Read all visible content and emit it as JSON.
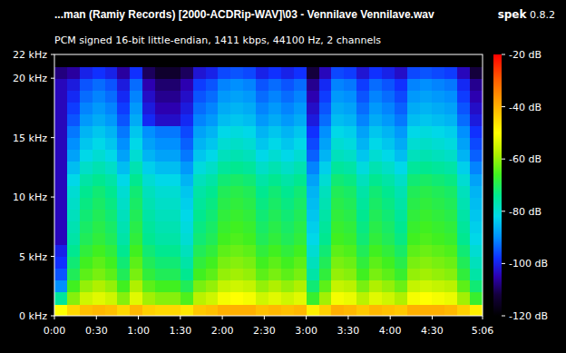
{
  "chart_data": {
    "type": "heatmap",
    "title": "...man (Ramiy Records) [2000-ACDRip-WAV]\\03 - Vennilave Vennilave.wav",
    "subtitle": "PCM signed 16-bit little-endian, 1411 kbps, 44100 Hz, 2 channels",
    "program": "spek",
    "version": "0.8.2",
    "xlim": [
      0,
      306
    ],
    "xticks": [
      {
        "value": 0,
        "label": "0:00"
      },
      {
        "value": 30,
        "label": "0:30"
      },
      {
        "value": 60,
        "label": "1:00"
      },
      {
        "value": 90,
        "label": "1:30"
      },
      {
        "value": 120,
        "label": "2:00"
      },
      {
        "value": 150,
        "label": "2:30"
      },
      {
        "value": 180,
        "label": "3:00"
      },
      {
        "value": 210,
        "label": "3:30"
      },
      {
        "value": 240,
        "label": "4:00"
      },
      {
        "value": 270,
        "label": "4:30"
      },
      {
        "value": 306,
        "label": "5:06"
      }
    ],
    "ylim": [
      0,
      22
    ],
    "yticks": [
      {
        "value": 0,
        "label": "0 kHz"
      },
      {
        "value": 5,
        "label": "5 kHz"
      },
      {
        "value": 10,
        "label": "10 kHz"
      },
      {
        "value": 15,
        "label": "15 kHz"
      },
      {
        "value": 20,
        "label": "20 kHz"
      },
      {
        "value": 22,
        "label": "22 kHz"
      }
    ],
    "x_bins": [
      0,
      9,
      18,
      27,
      36,
      45,
      54,
      63,
      72,
      81,
      90,
      99,
      108,
      117,
      126,
      135,
      144,
      153,
      162,
      171,
      180,
      189,
      198,
      207,
      216,
      225,
      234,
      243,
      252,
      261,
      270,
      279,
      288,
      297,
      306
    ],
    "y_bins": [
      0,
      1,
      2,
      3,
      4,
      5,
      6,
      7,
      8,
      9,
      10,
      11,
      12,
      13,
      14,
      15,
      16,
      17,
      18,
      19,
      20,
      21,
      22
    ],
    "cells": [
      [
        -50,
        -45,
        -42,
        -41,
        -42,
        -45,
        -41,
        -44,
        -45,
        -45,
        -47,
        -43,
        -42,
        -40,
        -40,
        -40,
        -42,
        -41,
        -42,
        -41,
        -48,
        -44,
        -40,
        -41,
        -43,
        -41,
        -42,
        -43,
        -40,
        -40,
        -40,
        -41,
        -44,
        -48
      ],
      [
        -75,
        -61,
        -55,
        -53,
        -55,
        -61,
        -53,
        -59,
        -61,
        -61,
        -65,
        -57,
        -55,
        -51,
        -50,
        -51,
        -55,
        -53,
        -55,
        -53,
        -67,
        -59,
        -51,
        -52,
        -57,
        -53,
        -55,
        -58,
        -51,
        -50,
        -51,
        -52,
        -59,
        -67
      ],
      [
        -90,
        -66,
        -60,
        -58,
        -60,
        -66,
        -58,
        -64,
        -66,
        -66,
        -70,
        -62,
        -60,
        -56,
        -55,
        -56,
        -60,
        -58,
        -60,
        -58,
        -72,
        -64,
        -56,
        -57,
        -62,
        -58,
        -60,
        -63,
        -56,
        -55,
        -56,
        -57,
        -64,
        -72
      ],
      [
        -95,
        -70,
        -64,
        -62,
        -64,
        -70,
        -62,
        -68,
        -70,
        -70,
        -74,
        -66,
        -64,
        -60,
        -59,
        -60,
        -64,
        -62,
        -64,
        -62,
        -76,
        -68,
        -60,
        -61,
        -66,
        -62,
        -64,
        -67,
        -60,
        -59,
        -60,
        -61,
        -68,
        -76
      ],
      [
        -98,
        -72,
        -66,
        -64,
        -66,
        -72,
        -64,
        -70,
        -72,
        -72,
        -76,
        -68,
        -66,
        -62,
        -61,
        -62,
        -66,
        -64,
        -66,
        -64,
        -78,
        -70,
        -62,
        -63,
        -68,
        -64,
        -66,
        -69,
        -62,
        -61,
        -62,
        -63,
        -70,
        -78
      ],
      [
        -100,
        -74,
        -68,
        -66,
        -68,
        -74,
        -66,
        -72,
        -74,
        -74,
        -78,
        -70,
        -68,
        -64,
        -63,
        -64,
        -68,
        -66,
        -68,
        -66,
        -80,
        -72,
        -64,
        -65,
        -70,
        -66,
        -68,
        -71,
        -64,
        -63,
        -64,
        -65,
        -72,
        -80
      ],
      [
        -104,
        -76,
        -70,
        -68,
        -70,
        -76,
        -68,
        -74,
        -76,
        -76,
        -80,
        -72,
        -70,
        -66,
        -65,
        -66,
        -70,
        -68,
        -70,
        -68,
        -82,
        -74,
        -66,
        -67,
        -72,
        -68,
        -70,
        -73,
        -66,
        -65,
        -66,
        -67,
        -74,
        -82
      ],
      [
        -104,
        -77,
        -71,
        -69,
        -71,
        -77,
        -69,
        -75,
        -77,
        -77,
        -81,
        -73,
        -71,
        -67,
        -66,
        -67,
        -71,
        -69,
        -71,
        -69,
        -83,
        -75,
        -67,
        -68,
        -73,
        -69,
        -71,
        -74,
        -67,
        -66,
        -67,
        -68,
        -75,
        -83
      ],
      [
        -104,
        -78,
        -72,
        -70,
        -72,
        -78,
        -70,
        -76,
        -78,
        -78,
        -82,
        -74,
        -72,
        -68,
        -67,
        -68,
        -72,
        -70,
        -72,
        -70,
        -84,
        -76,
        -68,
        -69,
        -74,
        -70,
        -72,
        -75,
        -68,
        -67,
        -68,
        -69,
        -76,
        -84
      ],
      [
        -104,
        -79,
        -73,
        -71,
        -73,
        -79,
        -71,
        -77,
        -79,
        -79,
        -83,
        -75,
        -73,
        -69,
        -68,
        -69,
        -73,
        -71,
        -73,
        -71,
        -85,
        -77,
        -69,
        -70,
        -75,
        -71,
        -73,
        -76,
        -69,
        -68,
        -69,
        -70,
        -77,
        -85
      ],
      [
        -104,
        -80,
        -74,
        -72,
        -74,
        -80,
        -72,
        -78,
        -80,
        -80,
        -84,
        -76,
        -74,
        -70,
        -69,
        -70,
        -74,
        -72,
        -74,
        -72,
        -86,
        -78,
        -70,
        -71,
        -76,
        -72,
        -74,
        -77,
        -70,
        -69,
        -70,
        -71,
        -78,
        -86
      ],
      [
        -104,
        -82,
        -76,
        -74,
        -76,
        -82,
        -74,
        -80,
        -82,
        -82,
        -86,
        -78,
        -76,
        -72,
        -71,
        -72,
        -76,
        -74,
        -76,
        -74,
        -88,
        -80,
        -72,
        -73,
        -78,
        -74,
        -76,
        -79,
        -72,
        -71,
        -72,
        -73,
        -80,
        -88
      ],
      [
        -104,
        -85,
        -79,
        -77,
        -79,
        -85,
        -77,
        -83,
        -85,
        -85,
        -89,
        -81,
        -79,
        -75,
        -74,
        -75,
        -79,
        -77,
        -79,
        -77,
        -91,
        -83,
        -75,
        -76,
        -81,
        -77,
        -79,
        -82,
        -75,
        -74,
        -75,
        -76,
        -83,
        -91
      ],
      [
        -104,
        -88,
        -82,
        -80,
        -82,
        -88,
        -80,
        -86,
        -88,
        -88,
        -92,
        -84,
        -82,
        -78,
        -77,
        -78,
        -82,
        -80,
        -82,
        -80,
        -94,
        -86,
        -78,
        -79,
        -84,
        -80,
        -82,
        -85,
        -78,
        -77,
        -78,
        -79,
        -86,
        -94
      ],
      [
        -104,
        -90,
        -84,
        -82,
        -84,
        -90,
        -82,
        -88,
        -90,
        -90,
        -94,
        -86,
        -84,
        -80,
        -79,
        -80,
        -84,
        -82,
        -84,
        -82,
        -96,
        -88,
        -80,
        -81,
        -86,
        -82,
        -84,
        -87,
        -80,
        -79,
        -80,
        -81,
        -88,
        -96
      ],
      [
        -104,
        -92,
        -86,
        -84,
        -86,
        -92,
        -84,
        -90,
        -92,
        -92,
        -96,
        -88,
        -86,
        -82,
        -81,
        -82,
        -86,
        -84,
        -86,
        -84,
        -98,
        -90,
        -82,
        -83,
        -88,
        -84,
        -86,
        -89,
        -82,
        -81,
        -82,
        -83,
        -90,
        -98
      ],
      [
        -104,
        -95,
        -89,
        -87,
        -89,
        -95,
        -87,
        -99,
        -103,
        -103,
        -99,
        -91,
        -89,
        -85,
        -84,
        -85,
        -89,
        -87,
        -89,
        -87,
        -101,
        -93,
        -85,
        -86,
        -91,
        -87,
        -89,
        -92,
        -85,
        -84,
        -85,
        -86,
        -93,
        -101
      ],
      [
        -104,
        -97,
        -91,
        -89,
        -91,
        -97,
        -89,
        -101,
        -105,
        -105,
        -101,
        -93,
        -91,
        -87,
        -86,
        -87,
        -91,
        -89,
        -91,
        -89,
        -103,
        -95,
        -87,
        -88,
        -93,
        -89,
        -91,
        -94,
        -87,
        -86,
        -87,
        -88,
        -95,
        -103
      ],
      [
        -104,
        -99,
        -93,
        -91,
        -93,
        -99,
        -91,
        -103,
        -107,
        -107,
        -103,
        -95,
        -93,
        -89,
        -88,
        -89,
        -93,
        -91,
        -93,
        -91,
        -105,
        -97,
        -89,
        -90,
        -95,
        -91,
        -93,
        -96,
        -89,
        -88,
        -89,
        -90,
        -97,
        -105
      ],
      [
        -104,
        -101,
        -95,
        -93,
        -95,
        -101,
        -93,
        -105,
        -109,
        -109,
        -105,
        -97,
        -95,
        -91,
        -90,
        -91,
        -95,
        -93,
        -95,
        -93,
        -107,
        -99,
        -91,
        -92,
        -97,
        -93,
        -95,
        -98,
        -91,
        -90,
        -91,
        -92,
        -99,
        -107
      ],
      [
        -108,
        -106,
        -100,
        -98,
        -100,
        -106,
        -98,
        -110,
        -114,
        -114,
        -110,
        -102,
        -100,
        -96,
        -95,
        -96,
        -100,
        -98,
        -100,
        -98,
        -112,
        -104,
        -96,
        -97,
        -102,
        -98,
        -100,
        -103,
        -96,
        -95,
        -96,
        -97,
        -104,
        -112
      ],
      [
        -120,
        -120,
        -120,
        -120,
        -120,
        -120,
        -120,
        -120,
        -120,
        -120,
        -120,
        -120,
        -120,
        -120,
        -120,
        -120,
        -120,
        -120,
        -120,
        -120,
        -120,
        -120,
        -120,
        -120,
        -120,
        -120,
        -120,
        -120,
        -120,
        -120,
        -120,
        -120,
        -120,
        -120
      ]
    ],
    "colorbar_range": [
      -120,
      -20
    ],
    "colorbar_ticks": [
      {
        "value": -20,
        "label": "-20 dB"
      },
      {
        "value": -40,
        "label": "-40 dB"
      },
      {
        "value": -60,
        "label": "-60 dB"
      },
      {
        "value": -80,
        "label": "-80 dB"
      },
      {
        "value": -100,
        "label": "-100 dB"
      },
      {
        "value": -120,
        "label": "-120 dB"
      }
    ]
  }
}
